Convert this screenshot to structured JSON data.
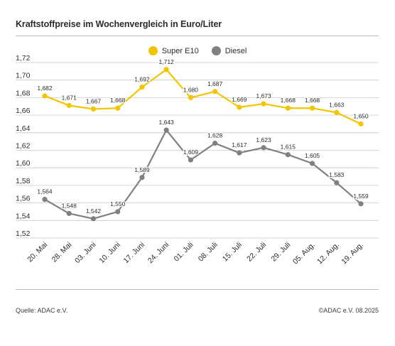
{
  "header": {
    "title": "Kraftstoffpreise im Wochenvergleich in Euro/Liter"
  },
  "footer": {
    "source": "Quelle: ADAC e.V.",
    "copyright": "©ADAC e.V. 08.2025"
  },
  "colors": {
    "super_e10": "#f2c500",
    "diesel": "#808080",
    "grid": "#c8c8c8",
    "text": "#2b2b2b"
  },
  "chart_data": {
    "type": "line",
    "title": "Kraftstoffpreise im Wochenvergleich in Euro/Liter",
    "xlabel": "",
    "ylabel": "",
    "categories": [
      "20. Mai",
      "28. Mai",
      "03. Juni",
      "10. Juni",
      "17. Juni",
      "24. Juni",
      "01. Juli",
      "08. Juli",
      "15. Juli",
      "22. Juli",
      "29. Juli",
      "05. Aug.",
      "12. Aug.",
      "19. Aug."
    ],
    "ylim": [
      1.52,
      1.72
    ],
    "yticks": [
      "1,52",
      "1,54",
      "1,56",
      "1,58",
      "1,60",
      "1,62",
      "1,64",
      "1,66",
      "1,68",
      "1,70",
      "1,72"
    ],
    "grid": true,
    "legend_position": "top-center",
    "series": [
      {
        "name": "Super E10",
        "color": "#f2c500",
        "values": [
          1.682,
          1.671,
          1.667,
          1.668,
          1.692,
          1.712,
          1.68,
          1.687,
          1.669,
          1.673,
          1.668,
          1.668,
          1.663,
          1.65
        ],
        "labels": [
          "1,682",
          "1,671",
          "1,667",
          "1,668",
          "1,692",
          "1,712",
          "1,680",
          "1,687",
          "1,669",
          "1,673",
          "1,668",
          "1,668",
          "1,663",
          "1,650"
        ]
      },
      {
        "name": "Diesel",
        "color": "#808080",
        "values": [
          1.564,
          1.548,
          1.542,
          1.55,
          1.589,
          1.643,
          1.609,
          1.628,
          1.617,
          1.623,
          1.615,
          1.605,
          1.583,
          1.559
        ],
        "labels": [
          "1,564",
          "1,548",
          "1,542",
          "1,550",
          "1,589",
          "1,643",
          "1,609",
          "1,628",
          "1,617",
          "1,623",
          "1,615",
          "1,605",
          "1,583",
          "1,559"
        ]
      }
    ]
  }
}
